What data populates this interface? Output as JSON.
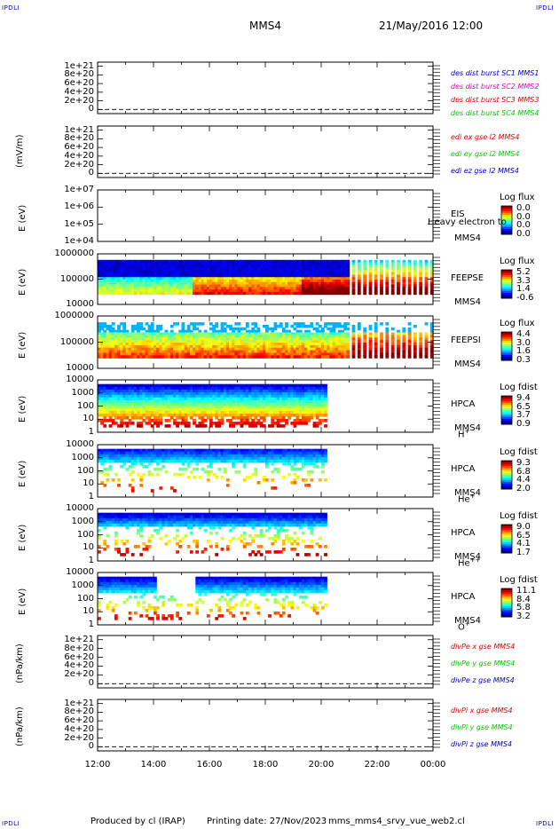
{
  "header": {
    "corner_label": "IPDLI",
    "spacecraft": "MMS4",
    "date_time": "21/May/2016 12:00"
  },
  "footer": {
    "produced_by": "Produced by cl (IRAP)",
    "printing_date": "Printing date: 27/Nov/2023",
    "script_name": "mms_mms4_srvy_vue_web2.cl"
  },
  "colors": {
    "legend_blue": "#0000c8",
    "legend_magenta": "#e600c8",
    "legend_red": "#dc0000",
    "legend_green": "#00c800",
    "heatmap_low": "#0000ff",
    "heatmap_high": "#ff0000"
  },
  "chart_data": [
    {
      "type": "line",
      "panel": "des-dist",
      "ylabel": "",
      "yticks": [
        "1e+21",
        "8e+20",
        "6e+20",
        "4e+20",
        "2e+20",
        "0"
      ],
      "legend": [
        "des dist burst SC1 MMS1",
        "des dist burst SC2 MMS2",
        "des dist burst SC3 MMS3",
        "des dist burst SC4 MMS4"
      ],
      "series": [],
      "zero_line": true
    },
    {
      "type": "line",
      "panel": "edi",
      "ylabel": "(mV/m)",
      "yticks": [
        "1e+21",
        "8e+20",
        "6e+20",
        "4e+20",
        "2e+20",
        "0"
      ],
      "legend": [
        "edi ex gse l2 MMS4",
        "edi ey gse l2 MMS4",
        "edi ez gse l2 MMS4"
      ],
      "series": [],
      "zero_line": true
    },
    {
      "type": "heatmap",
      "panel": "eis",
      "ylabel": "E (eV)",
      "yticks": [
        "1e+07",
        "1e+06",
        "1e+05",
        "1e+04"
      ],
      "instrument": "EIS",
      "subtitle": "Heavy electron to",
      "spacecraft": "MMS4",
      "colorbar_title": "Log flux",
      "colorbar_ticks": [
        "0.0",
        "0.0",
        "0.0",
        "0.0"
      ]
    },
    {
      "type": "heatmap",
      "panel": "feepse",
      "ylabel": "E (eV)",
      "yticks": [
        "1000000",
        "100000",
        "10000"
      ],
      "instrument": "FEEPSE",
      "spacecraft": "MMS4",
      "colorbar_title": "Log flux",
      "colorbar_ticks": [
        "5.2",
        "3.3",
        "1.4",
        "-0.6"
      ]
    },
    {
      "type": "heatmap",
      "panel": "feepsi",
      "ylabel": "E (eV)",
      "yticks": [
        "1000000",
        "100000",
        "10000"
      ],
      "instrument": "FEEPSI",
      "spacecraft": "MMS4",
      "colorbar_title": "Log flux",
      "colorbar_ticks": [
        "4.4",
        "3.0",
        "1.6",
        "0.3"
      ]
    },
    {
      "type": "heatmap",
      "panel": "hpca-h",
      "ylabel": "E (eV)",
      "yticks": [
        "10000",
        "1000",
        "100",
        "10",
        "1"
      ],
      "instrument": "HPCA",
      "spacecraft": "MMS4",
      "species": "H",
      "species_charge": "+",
      "colorbar_title": "Log fdist",
      "colorbar_ticks": [
        "9.4",
        "6.5",
        "3.7",
        "0.9"
      ]
    },
    {
      "type": "heatmap",
      "panel": "hpca-he",
      "ylabel": "E (eV)",
      "yticks": [
        "10000",
        "1000",
        "100",
        "10",
        "1"
      ],
      "instrument": "HPCA",
      "spacecraft": "MMS4",
      "species": "He",
      "species_charge": "+",
      "colorbar_title": "Log fdist",
      "colorbar_ticks": [
        "9.3",
        "6.8",
        "4.4",
        "2.0"
      ]
    },
    {
      "type": "heatmap",
      "panel": "hpca-he2",
      "ylabel": "E (eV)",
      "yticks": [
        "10000",
        "1000",
        "100",
        "10",
        "1"
      ],
      "instrument": "HPCA",
      "spacecraft": "MMS4",
      "species": "He",
      "species_charge": "++",
      "colorbar_title": "Log fdist",
      "colorbar_ticks": [
        "9.0",
        "6.5",
        "4.1",
        "1.7"
      ]
    },
    {
      "type": "heatmap",
      "panel": "hpca-o",
      "ylabel": "E (eV)",
      "yticks": [
        "10000",
        "1000",
        "100",
        "10",
        "1"
      ],
      "instrument": "HPCA",
      "spacecraft": "MMS4",
      "species": "O",
      "species_charge": "+",
      "colorbar_title": "Log fdist",
      "colorbar_ticks": [
        "11.1",
        "8.4",
        "5.8",
        "3.2"
      ]
    },
    {
      "type": "line",
      "panel": "divpe",
      "ylabel": "(nPa/km)",
      "yticks": [
        "1e+21",
        "8e+20",
        "6e+20",
        "4e+20",
        "2e+20",
        "0"
      ],
      "legend": [
        "divPe x gse MMS4",
        "divPe y gse MMS4",
        "divPe z gse MMS4"
      ],
      "series": [],
      "zero_line": true
    },
    {
      "type": "line",
      "panel": "divpi",
      "ylabel": "(nPa/km)",
      "yticks": [
        "1e+21",
        "8e+20",
        "6e+20",
        "4e+20",
        "2e+20",
        "0"
      ],
      "legend": [
        "divPi x gse MMS4",
        "divPi y gse MMS4",
        "divPi z gse MMS4"
      ],
      "series": [],
      "zero_line": true
    }
  ],
  "x_axis": {
    "ticks": [
      "12:00",
      "14:00",
      "16:00",
      "18:00",
      "20:00",
      "22:00",
      "00:00"
    ],
    "range_hours": [
      12,
      24
    ]
  }
}
